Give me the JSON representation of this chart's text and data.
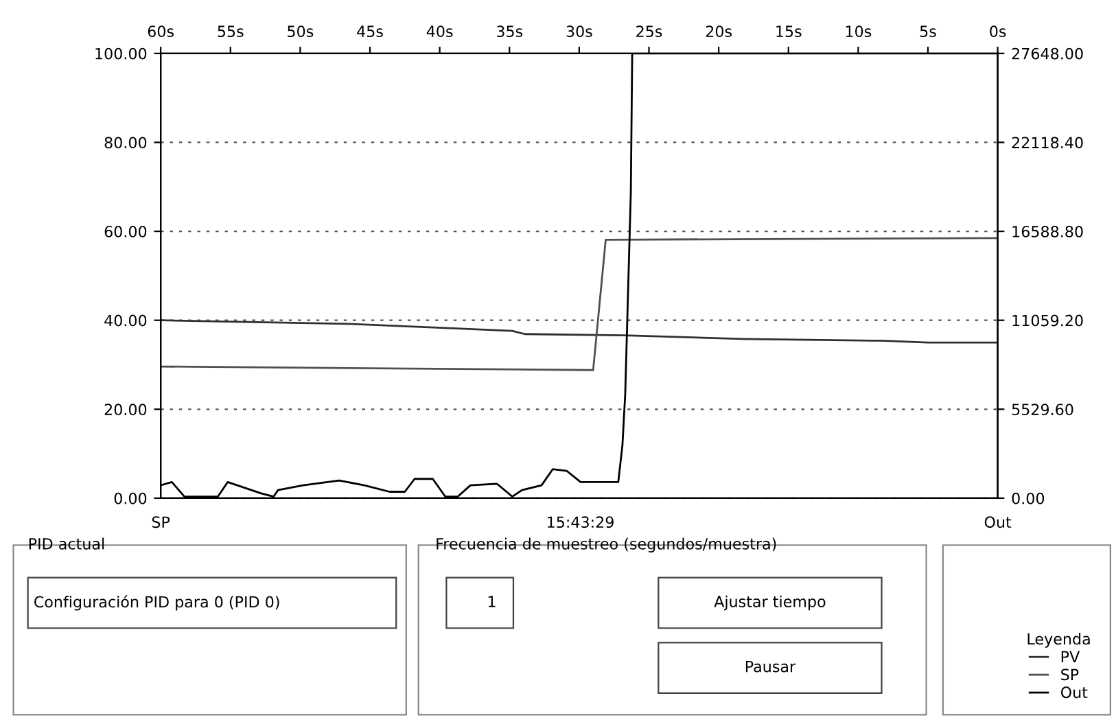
{
  "chart_data": {
    "type": "line",
    "xlim": [
      -60,
      0
    ],
    "xticks": [
      {
        "value": -60,
        "label": "60s"
      },
      {
        "value": -55,
        "label": "55s"
      },
      {
        "value": -50,
        "label": "50s"
      },
      {
        "value": -45,
        "label": "45s"
      },
      {
        "value": -40,
        "label": "40s"
      },
      {
        "value": -35,
        "label": "35s"
      },
      {
        "value": -30,
        "label": "30s"
      },
      {
        "value": -25,
        "label": "25s"
      },
      {
        "value": -20,
        "label": "20s"
      },
      {
        "value": -15,
        "label": "15s"
      },
      {
        "value": -10,
        "label": "10s"
      },
      {
        "value": -5,
        "label": "5s"
      },
      {
        "value": 0,
        "label": "0s"
      }
    ],
    "ylim": [
      0,
      100
    ],
    "yticks": [
      {
        "value": 0,
        "label": "0.00"
      },
      {
        "value": 20,
        "label": "20.00"
      },
      {
        "value": 40,
        "label": "40.00"
      },
      {
        "value": 60,
        "label": "60.00"
      },
      {
        "value": 80,
        "label": "80.00"
      },
      {
        "value": 100,
        "label": "100.00"
      }
    ],
    "y2lim": [
      0,
      27648
    ],
    "y2ticks": [
      {
        "value": 0,
        "label": "0.00"
      },
      {
        "value": 5529.6,
        "label": "5529.60"
      },
      {
        "value": 11059.2,
        "label": "11059.20"
      },
      {
        "value": 16588.8,
        "label": "16588.80"
      },
      {
        "value": 22118.4,
        "label": "22118.40"
      },
      {
        "value": 27648,
        "label": "27648.00"
      }
    ],
    "grid": "y",
    "legend": "bottom right",
    "legend_title": "Leyenda",
    "line_style": "solid",
    "series": [
      {
        "name": "PV",
        "color": "#303030",
        "x": [
          -60,
          -46.6,
          -39.9,
          -34.8,
          -33.9,
          -26.8,
          -18.3,
          -8.3,
          -5.0,
          0
        ],
        "values": [
          40,
          39.2,
          38.3,
          37.6,
          36.9,
          36.6,
          35.8,
          35.4,
          35.0,
          35.0
        ]
      },
      {
        "name": "SP",
        "color": "#505050",
        "x": [
          -60,
          -29.0,
          -28.1,
          0
        ],
        "values": [
          29.6,
          28.8,
          58.1,
          58.5
        ]
      },
      {
        "name": "Out",
        "color": "#000000",
        "axis": "y2",
        "x": [
          -60,
          -59.2,
          -58.3,
          -55.9,
          -55.2,
          -52.8,
          -51.9,
          -51.6,
          -49.8,
          -47.2,
          -45.4,
          -43.6,
          -42.5,
          -41.8,
          -40.5,
          -39.6,
          -38.7,
          -37.8,
          -35.9,
          -34.8,
          -34.1,
          -32.7,
          -31.9,
          -30.9,
          -29.9,
          -27.2,
          -26.9,
          -26.7,
          -26.3,
          -26.2,
          0
        ],
        "values": [
          800,
          1000,
          100,
          100,
          1000,
          300,
          100,
          500,
          800,
          1100,
          800,
          400,
          400,
          1200,
          1200,
          100,
          100,
          800,
          900,
          100,
          500,
          800,
          1800,
          1700,
          1000,
          1000,
          3300,
          6500,
          19000,
          27648,
          27648
        ]
      }
    ],
    "annotations": [
      "15:43:29",
      "PID actual",
      "Configuración PID para 0 (PID 0)",
      "Frecuencia de muestreo (segundos/muestra)",
      "1",
      "Ajustar tiempo",
      "Pausar",
      "SP",
      "Out"
    ]
  }
}
